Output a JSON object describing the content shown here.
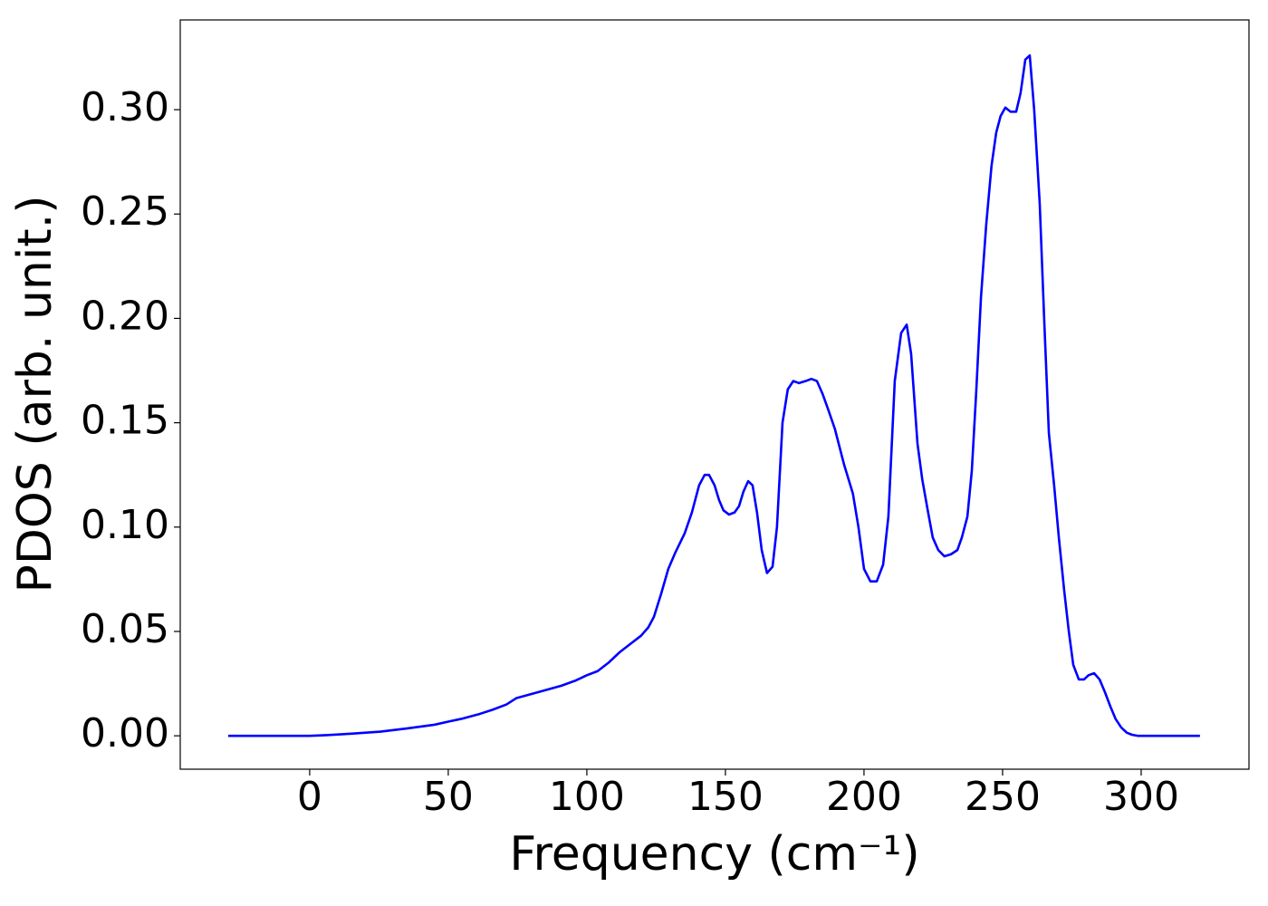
{
  "chart_data": {
    "type": "line",
    "xlabel": "Frequency (cm⁻¹)",
    "ylabel": "PDOS (arb. unit.)",
    "x": [
      -29.4,
      0,
      5.9,
      15,
      25.5,
      35,
      45,
      50,
      55,
      61.4,
      66,
      71,
      74.5,
      82.7,
      90.8,
      96,
      100,
      103.9,
      107.8,
      111.8,
      115.7,
      119.6,
      122.2,
      124.2,
      126.8,
      129.4,
      132,
      135.3,
      137.9,
      140.5,
      142.5,
      144.1,
      146.1,
      147.7,
      149.3,
      151.3,
      153.3,
      154.9,
      156.5,
      158.2,
      159.8,
      161.4,
      163.1,
      165,
      167,
      168.6,
      170.6,
      172.5,
      174.5,
      176.5,
      179,
      181,
      183,
      185,
      186.9,
      189.5,
      192.8,
      196,
      198,
      200,
      202.3,
      204.6,
      206.9,
      208.8,
      211.1,
      213.4,
      215.4,
      217,
      219.3,
      221,
      223,
      224.8,
      226.8,
      229,
      231.4,
      233.7,
      235.3,
      237.3,
      238.9,
      240.5,
      242.2,
      244.1,
      246,
      247.7,
      249.3,
      251,
      252.9,
      254.9,
      256.5,
      258.2,
      259.8,
      261.4,
      263.4,
      265,
      266.7,
      268.6,
      270.3,
      272.2,
      273.9,
      275.5,
      277.5,
      279.4,
      281,
      283,
      285,
      286.9,
      288.9,
      290.8,
      292.8,
      294.8,
      296.7,
      298.7,
      321.2
    ],
    "series": [
      {
        "name": "PDOS",
        "color": "#0000ff",
        "values": [
          0,
          0,
          0.0003,
          0.001,
          0.002,
          0.0035,
          0.0053,
          0.0068,
          0.0082,
          0.0105,
          0.0125,
          0.015,
          0.018,
          0.021,
          0.024,
          0.0265,
          0.029,
          0.031,
          0.035,
          0.04,
          0.044,
          0.048,
          0.052,
          0.057,
          0.068,
          0.08,
          0.088,
          0.097,
          0.107,
          0.12,
          0.125,
          0.125,
          0.12,
          0.113,
          0.108,
          0.106,
          0.107,
          0.11,
          0.117,
          0.122,
          0.12,
          0.107,
          0.089,
          0.078,
          0.081,
          0.1,
          0.15,
          0.166,
          0.17,
          0.169,
          0.17,
          0.171,
          0.17,
          0.164,
          0.157,
          0.147,
          0.13,
          0.116,
          0.1,
          0.08,
          0.074,
          0.074,
          0.082,
          0.105,
          0.17,
          0.193,
          0.197,
          0.183,
          0.14,
          0.123,
          0.108,
          0.095,
          0.089,
          0.086,
          0.087,
          0.089,
          0.095,
          0.105,
          0.127,
          0.165,
          0.21,
          0.245,
          0.273,
          0.289,
          0.297,
          0.301,
          0.299,
          0.299,
          0.308,
          0.324,
          0.326,
          0.3,
          0.255,
          0.2,
          0.145,
          0.12,
          0.095,
          0.07,
          0.05,
          0.034,
          0.027,
          0.027,
          0.029,
          0.03,
          0.027,
          0.021,
          0.014,
          0.008,
          0.004,
          0.0015,
          0.0005,
          0,
          0
        ]
      }
    ],
    "xlim": [
      -46.7,
      338.9
    ],
    "xticks": [
      0,
      50,
      100,
      150,
      200,
      250,
      300
    ],
    "ylim": [
      -0.016,
      0.343
    ],
    "yticks": [
      {
        "value": 0,
        "label": "0.00"
      },
      {
        "value": 0.05,
        "label": "0.05"
      },
      {
        "value": 0.1,
        "label": "0.10"
      },
      {
        "value": 0.15,
        "label": "0.15"
      },
      {
        "value": 0.2,
        "label": "0.20"
      },
      {
        "value": 0.25,
        "label": "0.25"
      },
      {
        "value": 0.3,
        "label": "0.30"
      }
    ],
    "grid": false
  }
}
